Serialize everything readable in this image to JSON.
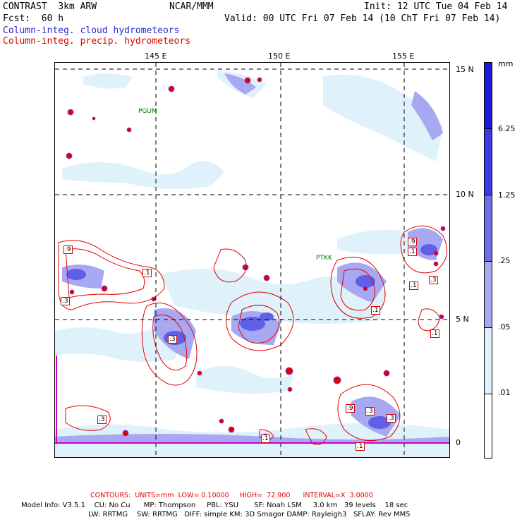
{
  "header": {
    "model": "CONTRAST  3km ARW",
    "center": "NCAR/MMM",
    "init": "Init: 12 UTC Tue 04 Feb 14",
    "fcst": "Fcst:  60 h",
    "valid": "Valid: 00 UTC Fri 07 Feb 14 (10 ChT Fri 07 Feb 14)",
    "field1": "Column-integ. cloud hydrometeors",
    "field2": "Column-integ. precip. hydrometeors",
    "field1_color": "#2a2ad8",
    "field2_color": "#e00000"
  },
  "map": {
    "lon_labels": [
      "145 E",
      "150 E",
      "155 E"
    ],
    "lat_labels": [
      "15 N",
      "10 N",
      "5 N",
      "0"
    ],
    "stations": [
      "PGUM",
      "PTKK"
    ],
    "station_color": "#007700",
    "contour_labels": [
      ".9",
      ".1",
      ".3",
      ".3",
      ".1",
      ".1",
      ".1",
      ".3",
      ".3",
      ".1",
      ".9",
      ".3",
      ".9",
      ".3",
      ".1",
      ".9",
      ".1"
    ]
  },
  "colorbar": {
    "unit": "mm",
    "labels": [
      "6.25",
      "1.25",
      ".25",
      ".05",
      ".01"
    ],
    "colors": [
      "#1a1ad8",
      "#3a3ae8",
      "#6f6fec",
      "#a8a8f2",
      "#dff2fb",
      "#ffffff"
    ]
  },
  "footer": {
    "contours": "CONTOURS:  UNITS=mm  LOW= 0.10000     HIGH=  72.900      INTERVAL=X  3.0000",
    "contours_color": "#e00000",
    "model_info_1": "Model Info: V3.5.1    CU: No Cu      MP: Thompson     PBL: YSU       SF: Noah LSM     3.0 km   39 levels    18 sec",
    "model_info_2": "LW: RRTMG    SW: RRTMG   DIFF: simple KM: 3D Smagor DAMP: Rayleigh3   SFLAY: Rev MM5"
  }
}
